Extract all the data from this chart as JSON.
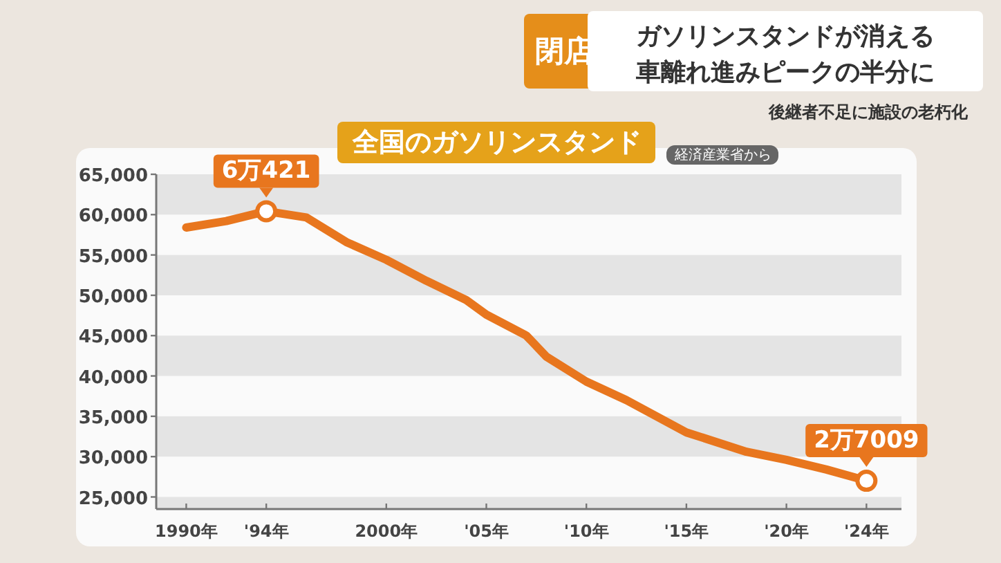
{
  "chart_data": {
    "type": "line",
    "title": "全国のガソリンスタンド",
    "annotations": [
      "閉店",
      "ガソリンスタンドが消える",
      "車離れ進みピークの半分に",
      "後継者不足に施設の老朽化",
      "経済産業省から",
      {
        "text": "6万421",
        "x": "1994",
        "y": 60421
      },
      {
        "text": "2万7009",
        "x": "2024",
        "y": 27009
      }
    ],
    "x": [
      "1990",
      "1992",
      "1994",
      "1996",
      "1998",
      "2000",
      "2002",
      "2004",
      "2005",
      "2007",
      "2008",
      "2010",
      "2012",
      "2015",
      "2018",
      "2020",
      "2022",
      "2024"
    ],
    "series": [
      {
        "color": "#e8761e",
        "values": [
          58400,
          59200,
          60421,
          59650,
          56600,
          54400,
          51800,
          49400,
          47600,
          45000,
          42400,
          39300,
          37000,
          33000,
          30600,
          29600,
          28400,
          27009
        ]
      }
    ],
    "xlim": [
      "1988-07",
      "2025-10"
    ],
    "ylim": [
      23500,
      65000
    ],
    "xticks": [
      {
        "value": "1990",
        "label": "1990年"
      },
      {
        "value": "1994",
        "label": "'94年"
      },
      {
        "value": "2000",
        "label": "2000年"
      },
      {
        "value": "2005",
        "label": "'05年"
      },
      {
        "value": "2010",
        "label": "'10年"
      },
      {
        "value": "2015",
        "label": "'15年"
      },
      {
        "value": "2020",
        "label": "'20年"
      },
      {
        "value": "2024",
        "label": "'24年"
      }
    ],
    "yticks": [
      {
        "value": 25000,
        "label": "25,000"
      },
      {
        "value": 30000,
        "label": "30,000"
      },
      {
        "value": 35000,
        "label": "35,000"
      },
      {
        "value": 40000,
        "label": "40,000"
      },
      {
        "value": 45000,
        "label": "45,000"
      },
      {
        "value": 50000,
        "label": "50,000"
      },
      {
        "value": 55000,
        "label": "55,000"
      },
      {
        "value": 60000,
        "label": "60,000"
      },
      {
        "value": 65000,
        "label": "65,000"
      }
    ],
    "bands": [
      {
        "axis": "y",
        "from": 60000,
        "to": 65000,
        "color": "#e4e4e4"
      },
      {
        "axis": "y",
        "from": 50000,
        "to": 55000,
        "color": "#e4e4e4"
      },
      {
        "axis": "y",
        "from": 40000,
        "to": 45000,
        "color": "#e4e4e4"
      },
      {
        "axis": "y",
        "from": 30000,
        "to": 35000,
        "color": "#e4e4e4"
      },
      {
        "axis": "y",
        "from": 23500,
        "to": 25000,
        "color": "#e4e4e4"
      }
    ],
    "marker": "none",
    "line_style": "solid"
  }
}
